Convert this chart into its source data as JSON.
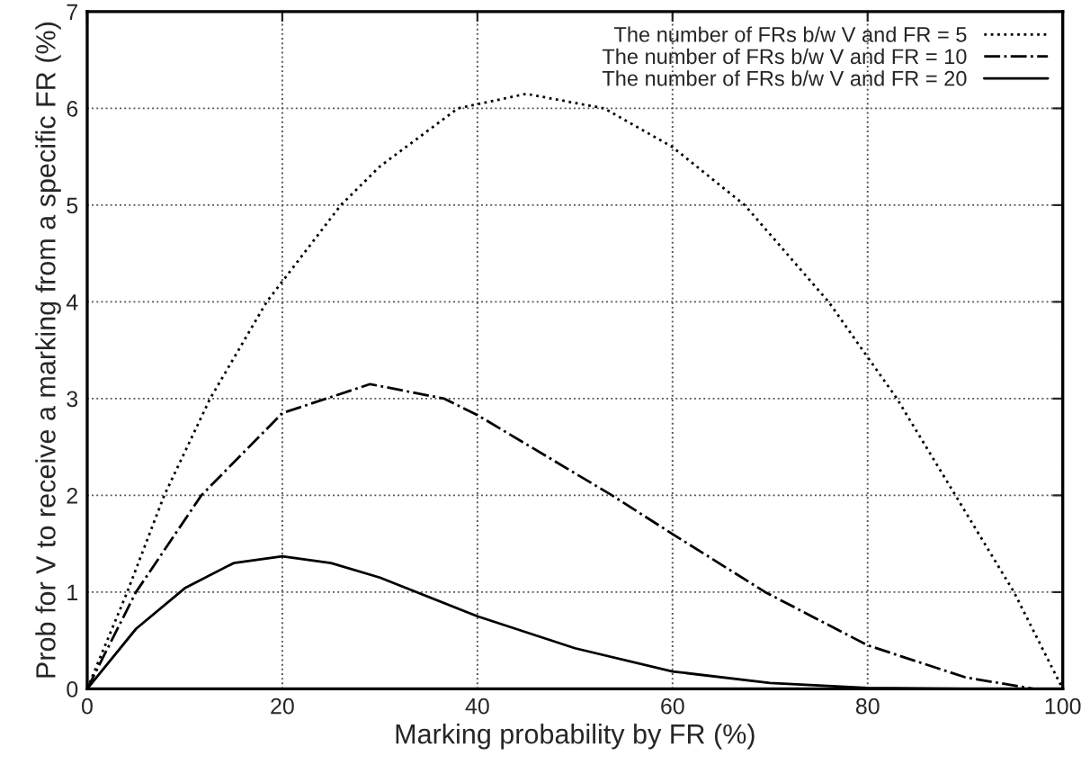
{
  "chart_data": {
    "type": "line",
    "xlabel": "Marking probability by FR (%)",
    "ylabel": "Prob for V to receive a marking from a specific FR (%)",
    "xlim": [
      0,
      100
    ],
    "ylim": [
      0,
      7
    ],
    "xticks": [
      0,
      20,
      40,
      60,
      80,
      100
    ],
    "yticks": [
      0,
      1,
      2,
      3,
      4,
      5,
      6,
      7
    ],
    "grid": true,
    "legend": "top right",
    "series": [
      {
        "name": "The number of FRs b/w V and FR = 5",
        "color": "#000000",
        "line_style": "dotted",
        "x": [
          0,
          4.1,
          7.9,
          12.6,
          18.4,
          26,
          30,
          38,
          45,
          53,
          60,
          67.4,
          76,
          83,
          89,
          95,
          100
        ],
        "values": [
          0,
          1,
          2,
          3,
          4,
          5,
          5.4,
          6,
          6.15,
          6,
          5.6,
          5,
          4,
          3,
          2,
          1,
          0
        ]
      },
      {
        "name": "The number of FRs b/w V and FR = 10",
        "color": "#000000",
        "line_style": "dashdot",
        "x": [
          0,
          5,
          11.7,
          20,
          24.5,
          29,
          36.6,
          40,
          53.8,
          60,
          69.5,
          80,
          90,
          97
        ],
        "values": [
          0,
          1,
          2,
          2.85,
          3,
          3.15,
          3,
          2.83,
          2,
          1.6,
          1,
          0.45,
          0.12,
          0
        ]
      },
      {
        "name": "The number of FRs b/w V and FR = 20",
        "color": "#000000",
        "line_style": "solid",
        "x": [
          0,
          5,
          10,
          15,
          20,
          25,
          30,
          40,
          50,
          60,
          70,
          80,
          90,
          100
        ],
        "values": [
          0,
          0.62,
          1.04,
          1.3,
          1.37,
          1.3,
          1.15,
          0.75,
          0.42,
          0.18,
          0.06,
          0.01,
          0,
          0
        ]
      }
    ]
  }
}
